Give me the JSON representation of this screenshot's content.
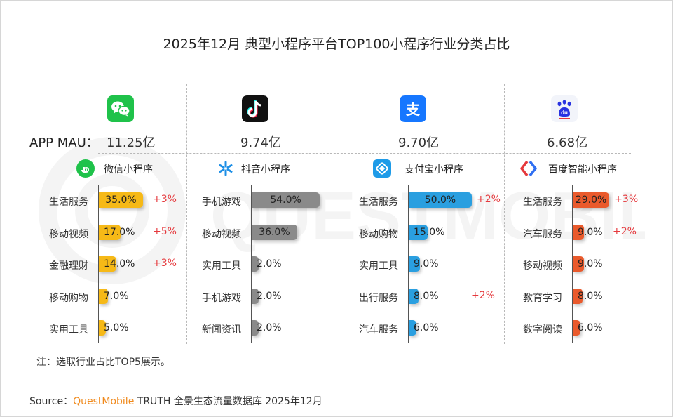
{
  "title": "2025年12月 典型小程序平台TOP100小程序行业分类占比",
  "mau_label": "APP MAU：",
  "note": "注：选取行业占比TOP5展示。",
  "source": {
    "prefix": "Source：",
    "brand": "QuestMobile",
    "rest": " TRUTH 全景生态流量数据库 2025年12月"
  },
  "watermark_text": "QUESTMOBILE",
  "chart_data": [
    {
      "type": "bar",
      "app_icon": "wechat-icon",
      "app_mau": "11.25亿",
      "program_icon": "wechat-miniprogram-icon",
      "program_name": "微信小程序",
      "color": "#f6b917",
      "categories": [
        "生活服务",
        "移动视频",
        "金融理财",
        "移动购物",
        "实用工具"
      ],
      "values": [
        35.0,
        17.0,
        14.0,
        7.0,
        5.0
      ],
      "labels": [
        "35.0%",
        "17.0%",
        "14.0%",
        "7.0%",
        "5.0%"
      ],
      "changes": [
        "+3%",
        "+5%",
        "+3%",
        "",
        ""
      ]
    },
    {
      "type": "bar",
      "app_icon": "douyin-icon",
      "app_mau": "9.74亿",
      "program_icon": "douyin-miniprogram-icon",
      "program_name": "抖音小程序",
      "color": "#8a8a8a",
      "categories": [
        "手机游戏",
        "移动视频",
        "实用工具",
        "手机游戏",
        "新闻资讯"
      ],
      "values": [
        54.0,
        36.0,
        2.0,
        2.0,
        2.0
      ],
      "labels": [
        "54.0%",
        "36.0%",
        "2.0%",
        "2.0%",
        "2.0%"
      ],
      "changes": [
        "",
        "",
        "",
        "",
        ""
      ]
    },
    {
      "type": "bar",
      "app_icon": "alipay-icon",
      "app_mau": "9.70亿",
      "program_icon": "alipay-miniprogram-icon",
      "program_name": "支付宝小程序",
      "color": "#2a9fe0",
      "categories": [
        "生活服务",
        "移动购物",
        "实用工具",
        "出行服务",
        "汽车服务"
      ],
      "values": [
        50.0,
        15.0,
        9.0,
        8.0,
        6.0
      ],
      "labels": [
        "50.0%",
        "15.0%",
        "9.0%",
        "8.0%",
        "6.0%"
      ],
      "changes": [
        "+2%",
        "",
        "",
        "+2%",
        ""
      ]
    },
    {
      "type": "bar",
      "app_icon": "baidu-icon",
      "app_mau": "6.68亿",
      "program_icon": "baidu-miniprogram-icon",
      "program_name": "百度智能小程序",
      "color": "#ea5a2c",
      "categories": [
        "生活服务",
        "汽车服务",
        "移动视频",
        "教育学习",
        "数字阅读"
      ],
      "values": [
        29.0,
        9.0,
        9.0,
        8.0,
        6.0
      ],
      "labels": [
        "29.0%",
        "9.0%",
        "9.0%",
        "8.0%",
        "6.0%"
      ],
      "changes": [
        "+3%",
        "+2%",
        "",
        "",
        ""
      ]
    }
  ]
}
